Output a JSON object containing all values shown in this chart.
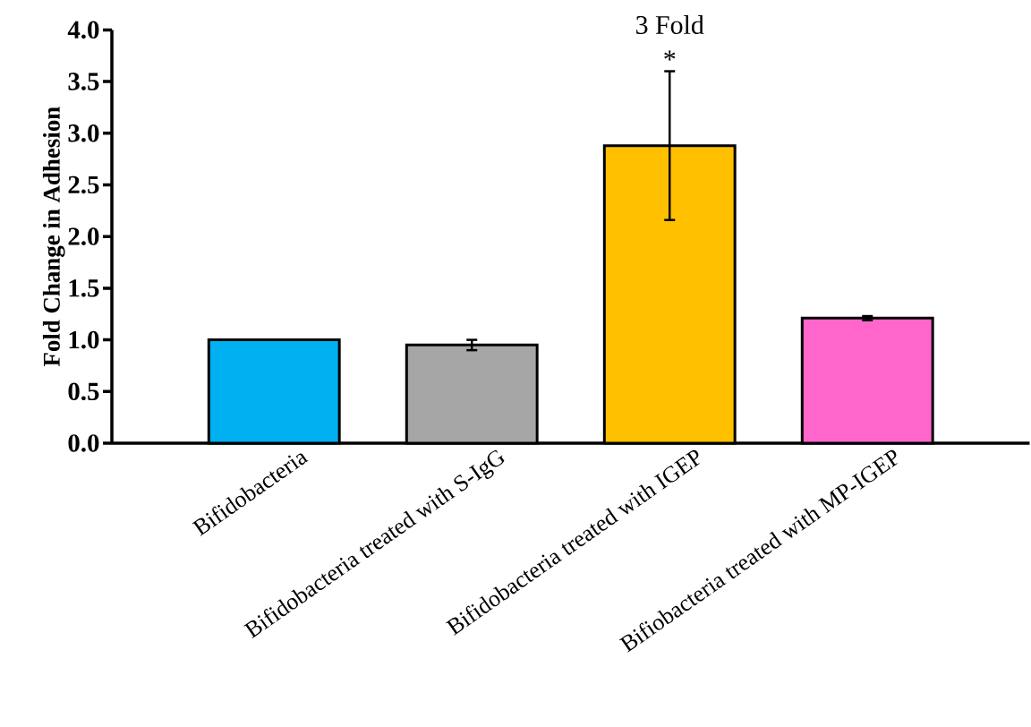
{
  "chart_data": {
    "type": "bar",
    "ylabel": "Fold Change in Adhesion",
    "categories": [
      "Bifidobacteria",
      "Bifidobacteria treated with S-IgG",
      "Bifidobacteria treated with IGEP",
      "Bifiobacteria treated with MP-IGEP"
    ],
    "values": [
      1.0,
      0.95,
      2.88,
      1.21
    ],
    "errors": [
      null,
      0.05,
      0.72,
      0.02
    ],
    "colors": [
      "#00b0f0",
      "#a6a6a6",
      "#ffc000",
      "#ff66cc"
    ],
    "ylim": [
      0,
      4
    ],
    "yticks": [
      {
        "value": 0,
        "label": "0.0"
      },
      {
        "value": 0.5,
        "label": "0.5"
      },
      {
        "value": 1,
        "label": "1.0"
      },
      {
        "value": 1.5,
        "label": "1.5"
      },
      {
        "value": 2,
        "label": "2.0"
      },
      {
        "value": 2.5,
        "label": "2.5"
      },
      {
        "value": 3,
        "label": "3.0"
      },
      {
        "value": 3.5,
        "label": "3.5"
      },
      {
        "value": 4,
        "label": "4.0"
      }
    ],
    "annotations": [
      "3 Fold",
      "*"
    ],
    "grid": false
  }
}
